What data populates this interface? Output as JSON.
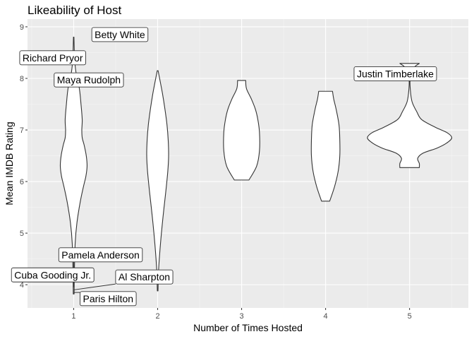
{
  "chart_data": {
    "type": "violin",
    "title": "Likeability of Host",
    "xlabel": "Number of Times Hosted",
    "ylabel": "Mean IMDB Rating",
    "categories": [
      "1",
      "2",
      "3",
      "4",
      "5"
    ],
    "x_range": [
      0.45,
      5.7
    ],
    "ylim": [
      3.55,
      9.15
    ],
    "y_ticks": [
      4,
      5,
      6,
      7,
      8,
      9
    ],
    "grid": true,
    "colors": {
      "panel": "#ebebeb",
      "grid_major": "#ffffff",
      "violin_fill": "#ffffff",
      "violin_stroke": "#333333"
    },
    "violins": [
      {
        "category": "1",
        "min": 3.82,
        "max": 8.8,
        "profile": [
          [
            3.82,
            0.005
          ],
          [
            4.2,
            0.008
          ],
          [
            4.8,
            0.018
          ],
          [
            5.2,
            0.04
          ],
          [
            5.6,
            0.08
          ],
          [
            5.9,
            0.12
          ],
          [
            6.1,
            0.15
          ],
          [
            6.3,
            0.165
          ],
          [
            6.5,
            0.155
          ],
          [
            6.7,
            0.13
          ],
          [
            6.85,
            0.105
          ],
          [
            7.0,
            0.1
          ],
          [
            7.2,
            0.105
          ],
          [
            7.5,
            0.09
          ],
          [
            7.8,
            0.07
          ],
          [
            8.1,
            0.03
          ],
          [
            8.3,
            0.015
          ],
          [
            8.5,
            0.008
          ],
          [
            8.8,
            0.003
          ]
        ]
      },
      {
        "category": "2",
        "min": 3.88,
        "max": 8.15,
        "profile": [
          [
            3.88,
            0.004
          ],
          [
            4.3,
            0.012
          ],
          [
            4.8,
            0.035
          ],
          [
            5.3,
            0.065
          ],
          [
            5.8,
            0.1
          ],
          [
            6.2,
            0.125
          ],
          [
            6.5,
            0.135
          ],
          [
            6.8,
            0.13
          ],
          [
            7.1,
            0.115
          ],
          [
            7.4,
            0.09
          ],
          [
            7.7,
            0.06
          ],
          [
            7.95,
            0.03
          ],
          [
            8.15,
            0.005
          ]
        ]
      },
      {
        "category": "3",
        "min": 6.03,
        "max": 7.96,
        "profile": [
          [
            6.03,
            0.09
          ],
          [
            6.3,
            0.185
          ],
          [
            6.6,
            0.22
          ],
          [
            6.95,
            0.22
          ],
          [
            7.2,
            0.2
          ],
          [
            7.4,
            0.17
          ],
          [
            7.6,
            0.12
          ],
          [
            7.8,
            0.06
          ],
          [
            7.96,
            0.05
          ]
        ]
      },
      {
        "category": "4",
        "min": 5.62,
        "max": 7.75,
        "profile": [
          [
            5.62,
            0.05
          ],
          [
            5.9,
            0.11
          ],
          [
            6.2,
            0.155
          ],
          [
            6.5,
            0.175
          ],
          [
            6.8,
            0.175
          ],
          [
            7.1,
            0.165
          ],
          [
            7.4,
            0.13
          ],
          [
            7.6,
            0.1
          ],
          [
            7.75,
            0.085
          ]
        ]
      },
      {
        "category": "5",
        "min": 6.27,
        "max": 8.29,
        "profile": [
          [
            6.27,
            0.12
          ],
          [
            6.35,
            0.12
          ],
          [
            6.45,
            0.1
          ],
          [
            6.55,
            0.165
          ],
          [
            6.65,
            0.34
          ],
          [
            6.75,
            0.46
          ],
          [
            6.85,
            0.52
          ],
          [
            6.95,
            0.46
          ],
          [
            7.05,
            0.32
          ],
          [
            7.2,
            0.15
          ],
          [
            7.35,
            0.09
          ],
          [
            7.55,
            0.03
          ],
          [
            7.8,
            0.008
          ],
          [
            8.0,
            0.008
          ],
          [
            8.2,
            0.05
          ],
          [
            8.29,
            0.12
          ]
        ]
      }
    ],
    "annotations": [
      {
        "label": "Betty White",
        "x": 1,
        "y": 8.8,
        "label_x": 1.55,
        "label_y": 8.85
      },
      {
        "label": "Richard Pryor",
        "x": 1,
        "y": 8.4,
        "label_x": 0.75,
        "label_y": 8.4
      },
      {
        "label": "Maya Rudolph",
        "x": 1,
        "y": 8.0,
        "label_x": 1.18,
        "label_y": 7.97
      },
      {
        "label": "Pamela Anderson",
        "x": 1,
        "y": 4.0,
        "label_x": 1.32,
        "label_y": 4.58,
        "leader": true
      },
      {
        "label": "Cuba Gooding Jr.",
        "x": 1,
        "y": 3.95,
        "label_x": 0.75,
        "label_y": 4.19,
        "leader": true
      },
      {
        "label": "Al Sharpton",
        "x": 1,
        "y": 3.9,
        "label_x": 1.84,
        "label_y": 4.15,
        "leader": true
      },
      {
        "label": "Paris Hilton",
        "x": 1,
        "y": 3.85,
        "label_x": 1.41,
        "label_y": 3.73,
        "leader": true
      },
      {
        "label": "Justin Timberlake",
        "x": 5,
        "y": 8.29,
        "label_x": 4.83,
        "label_y": 8.09
      }
    ]
  }
}
